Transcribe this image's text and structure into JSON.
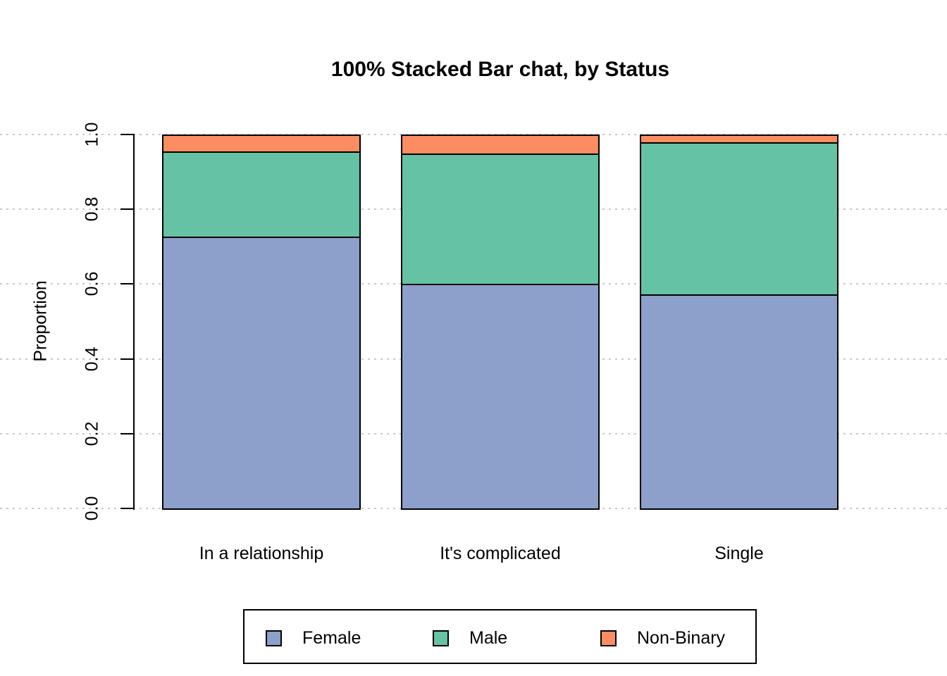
{
  "page": {
    "background": "#FFFFFF"
  },
  "chart_data": {
    "type": "bar",
    "variant": "100-percent-stacked",
    "title": "100% Stacked Bar chat, by Status",
    "xlabel": "",
    "ylabel": "Proportion",
    "categories": [
      "In a relationship",
      "It's complicated",
      "Single"
    ],
    "series": [
      {
        "name": "Female",
        "color": "#8DA0CB",
        "values": [
          0.727,
          0.6,
          0.572
        ]
      },
      {
        "name": "Male",
        "color": "#66C2A5",
        "values": [
          0.228,
          0.35,
          0.408
        ]
      },
      {
        "name": "Non-Binary",
        "color": "#FC8D62",
        "values": [
          0.045,
          0.05,
          0.02
        ]
      }
    ],
    "stack_order_bottom_to_top": [
      "Female",
      "Male",
      "Non-Binary"
    ],
    "ylim": [
      0,
      1
    ],
    "y_ticks": [
      0.0,
      0.2,
      0.4,
      0.6,
      0.8,
      1.0
    ],
    "y_tick_labels": [
      "0.0",
      "0.2",
      "0.4",
      "0.6",
      "0.8",
      "1.0"
    ],
    "grid": {
      "horizontal": true,
      "style": "dotted",
      "color": "#C9C9C9"
    },
    "bar_border_color": "#000000",
    "axis_color": "#000000",
    "legend": {
      "position": "bottom",
      "entries": [
        "Female",
        "Male",
        "Non-Binary"
      ]
    }
  }
}
